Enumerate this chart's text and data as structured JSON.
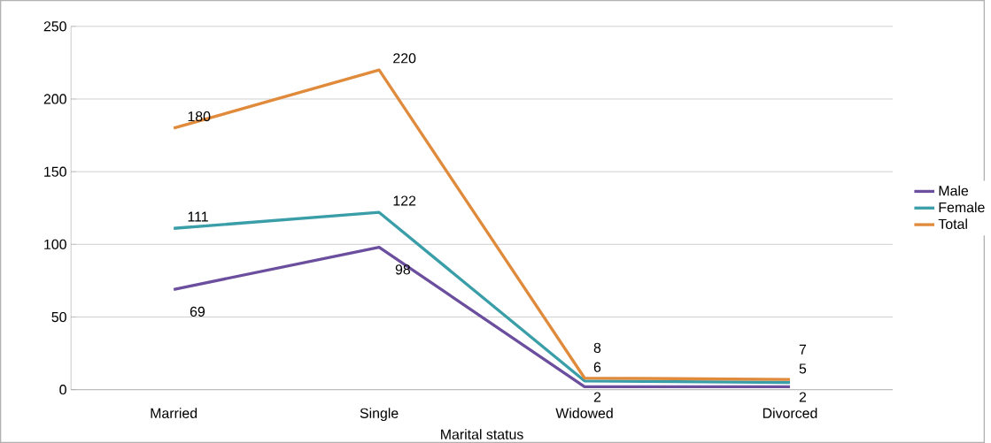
{
  "chart_data": {
    "type": "line",
    "xlabel": "Marital status",
    "categories": [
      "Married",
      "Single",
      "Widowed",
      "Divorced"
    ],
    "series": [
      {
        "name": "Male",
        "color": "#6b4f9e",
        "values": [
          69,
          98,
          2,
          2
        ]
      },
      {
        "name": "Female",
        "color": "#3a9ea8",
        "values": [
          111,
          122,
          6,
          5
        ]
      },
      {
        "name": "Total",
        "color": "#e08a3c",
        "values": [
          180,
          220,
          8,
          7
        ]
      }
    ],
    "ylim": [
      0,
      250
    ],
    "yticks": [
      0,
      50,
      100,
      150,
      200,
      250
    ],
    "grid": "y",
    "legend": "right",
    "data_labels": true,
    "marker": "none",
    "line_style": "solid"
  }
}
